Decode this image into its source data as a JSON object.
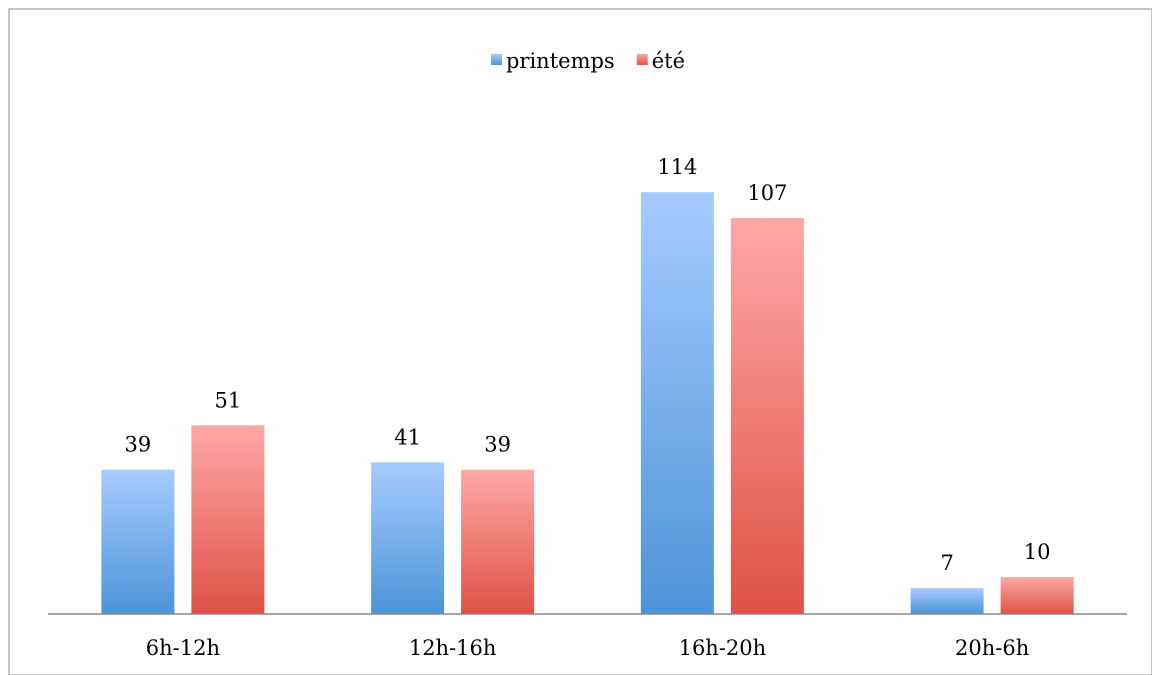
{
  "chart_data": {
    "type": "bar",
    "categories": [
      "6h-12h",
      "12h-16h",
      "16h-20h",
      "20h-6h"
    ],
    "series": [
      {
        "name": "printemps",
        "values": [
          39,
          41,
          114,
          7
        ],
        "color_light": "#a7cbff",
        "color_dark": "#4c94d8"
      },
      {
        "name": "été",
        "values": [
          51,
          39,
          107,
          10
        ],
        "color_light": "#ffa8a6",
        "color_dark": "#de5246"
      }
    ],
    "title": "",
    "xlabel": "",
    "ylabel": "",
    "ylim": [
      0,
      125
    ],
    "grid": false,
    "legend_position": "top-center",
    "data_labels": true
  }
}
